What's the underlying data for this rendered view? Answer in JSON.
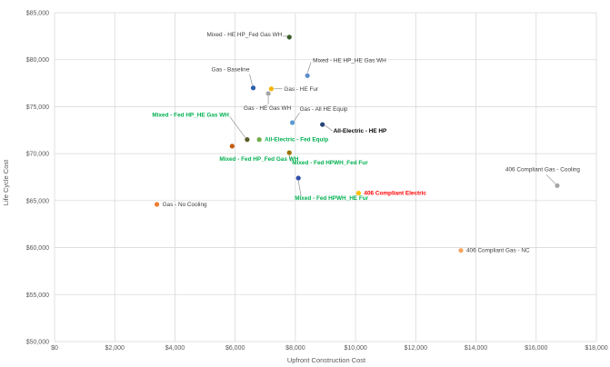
{
  "chart_data": {
    "type": "scatter",
    "title": "",
    "xlabel": "Upfront Construction Cost",
    "ylabel": "Life Cycle Cost",
    "xlim": [
      0,
      18000
    ],
    "ylim": [
      50000,
      85000
    ],
    "x_ticks": [
      0,
      2000,
      4000,
      6000,
      8000,
      10000,
      12000,
      14000,
      16000,
      18000
    ],
    "x_tick_labels": [
      "$0",
      "$2,000",
      "$4,000",
      "$6,000",
      "$8,000",
      "$10,000",
      "$12,000",
      "$14,000",
      "$16,000",
      "$18,000"
    ],
    "y_ticks": [
      50000,
      55000,
      60000,
      65000,
      70000,
      75000,
      80000,
      85000
    ],
    "y_tick_labels": [
      "$50,000",
      "$55,000",
      "$60,000",
      "$65,000",
      "$70,000",
      "$75,000",
      "$80,000",
      "$85,000"
    ],
    "grid": true,
    "legend": "none",
    "points": [
      {
        "label": "Mixed - HE HP_Fed Gas WH",
        "x": 7800,
        "y": 82400,
        "color": "#3b5e2b",
        "label_color": "#404040",
        "label_bold": false
      },
      {
        "label": "Mixed - HE HP_HE Gas WH",
        "x": 8400,
        "y": 78300,
        "color": "#5b8dc9",
        "label_color": "#404040",
        "label_bold": false
      },
      {
        "label": "Gas - Baseline",
        "x": 6600,
        "y": 77000,
        "color": "#2e5ea8",
        "label_color": "#404040",
        "label_bold": false
      },
      {
        "label": "Gas - HE Fur",
        "x": 7200,
        "y": 76900,
        "color": "#f0b400",
        "label_color": "#404040",
        "label_bold": false
      },
      {
        "label": "Gas - HE Gas WH",
        "x": 7100,
        "y": 76400,
        "color": "#a5a5a5",
        "label_color": "#404040",
        "label_bold": false
      },
      {
        "label": "Gas - All HE Equip",
        "x": 7900,
        "y": 73300,
        "color": "#5b9bd5",
        "label_color": "#404040",
        "label_bold": false
      },
      {
        "label": "All-Electric - HE HP",
        "x": 8900,
        "y": 73100,
        "color": "#264478",
        "label_color": "#000000",
        "label_bold": true
      },
      {
        "label": "Mixed - Fed HP_HE Gas WH",
        "x": 6400,
        "y": 71500,
        "color": "#5a5a2a",
        "label_color": "#00b050",
        "label_bold": true
      },
      {
        "label": "All-Electric - Fed Equip",
        "x": 6800,
        "y": 71500,
        "color": "#70ad47",
        "label_color": "#00b050",
        "label_bold": true
      },
      {
        "label": "Mixed - Fed HP_Fed Gas WH",
        "x": 5900,
        "y": 70800,
        "color": "#c55a11",
        "label_color": "#00b050",
        "label_bold": true
      },
      {
        "label": "Mixed - Fed HPWH_Fed Fur",
        "x": 7800,
        "y": 70100,
        "color": "#997300",
        "label_color": "#00b050",
        "label_bold": true
      },
      {
        "label": "Mixed - Fed HPWH_HE Fur",
        "x": 8100,
        "y": 67400,
        "color": "#2f4fa8",
        "label_color": "#00b050",
        "label_bold": true
      },
      {
        "label": "406 Compliant Electric",
        "x": 10100,
        "y": 65800,
        "color": "#ffc000",
        "label_color": "#ff0000",
        "label_bold": true
      },
      {
        "label": "406 Compliant Gas - Cooling",
        "x": 16700,
        "y": 66600,
        "color": "#a5a5a5",
        "label_color": "#404040",
        "label_bold": false
      },
      {
        "label": "Gas - No Cooling",
        "x": 3400,
        "y": 64600,
        "color": "#ed7d31",
        "label_color": "#404040",
        "label_bold": false
      },
      {
        "label": "406 Compliant Gas - NC",
        "x": 13500,
        "y": 59700,
        "color": "#f4a460",
        "label_color": "#404040",
        "label_bold": false
      }
    ]
  }
}
